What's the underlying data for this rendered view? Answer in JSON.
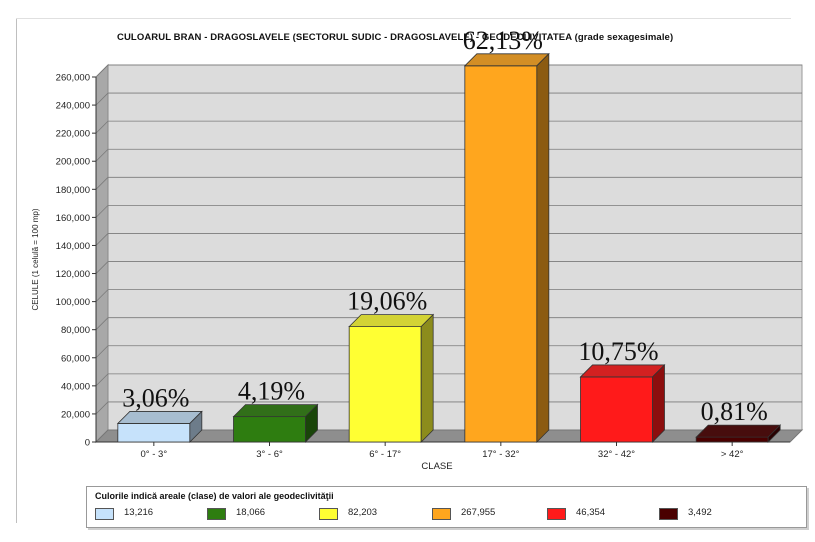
{
  "chart_data": {
    "type": "bar",
    "title": "CULOARUL  BRAN - DRAGOSLAVELE (SECTORUL SUDIC - DRAGOSLAVELE)  -  GEODECLIVITATEA (grade sexagesimale)",
    "xlabel": "CLASE",
    "ylabel": "CELULE (1 celulă = 100 mp)",
    "ylim": [
      0,
      260000
    ],
    "ytick_step": 20000,
    "ytick_labels": [
      "0",
      "20,000",
      "40,000",
      "60,000",
      "80,000",
      "100,000",
      "120,000",
      "140,000",
      "160,000",
      "180,000",
      "200,000",
      "220,000",
      "240,000",
      "260,000"
    ],
    "categories": [
      "0° - 3°",
      "3° - 6°",
      "6° - 17°",
      "17° - 32°",
      "32° - 42°",
      "> 42°"
    ],
    "values": [
      13216,
      18066,
      82203,
      267955,
      46354,
      3492
    ],
    "value_labels": [
      "13,216",
      "18,066",
      "82,203",
      "267,955",
      "46,354",
      "3,492"
    ],
    "percent_labels": [
      "3,06%",
      "4,19%",
      "19,06%",
      "62,13%",
      "10,75%",
      "0,81%"
    ],
    "colors": [
      "#c6e2fb",
      "#2e7d10",
      "#ffff33",
      "#ffa61e",
      "#ff1a1a",
      "#4a0000"
    ],
    "grid": true,
    "legend_position": "bottom",
    "legend_title": "Culorile indică areale (clase) de valori ale geodeclivităţii"
  }
}
